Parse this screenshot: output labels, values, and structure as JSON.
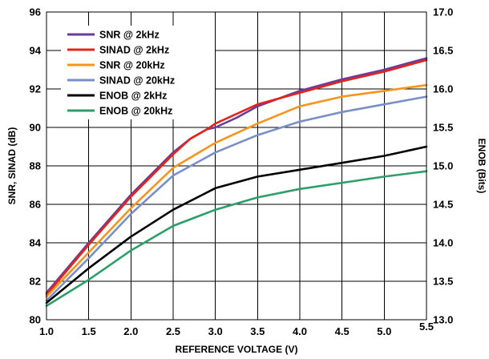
{
  "chart_data": {
    "type": "line",
    "xlabel": "REFERENCE VOLTAGE (V)",
    "ylabel_left": "SNR, SINAD (dB)",
    "ylabel_right": "ENOB (Bits)",
    "xlim": [
      1.0,
      5.5
    ],
    "ylim_left": [
      80,
      96
    ],
    "ylim_right": [
      13.0,
      17.0
    ],
    "xticks": [
      "1.0",
      "1.5",
      "2.0",
      "2.5",
      "3.0",
      "3.5",
      "4.0",
      "4.5",
      "5.0",
      "5.5"
    ],
    "yticks_left": [
      "80",
      "82",
      "84",
      "86",
      "88",
      "90",
      "92",
      "94",
      "96"
    ],
    "yticks_right": [
      "13.0",
      "13.5",
      "14.0",
      "14.5",
      "15.0",
      "15.5",
      "16.0",
      "16.5",
      "17.0"
    ],
    "grid": true,
    "legend_position": "top-left",
    "series": [
      {
        "name": "SNR @ 2kHz",
        "axis": "left",
        "color": "#6a3b9a",
        "x": [
          1.0,
          1.5,
          2.0,
          2.5,
          2.7,
          2.9,
          3.0,
          3.25,
          3.5,
          4.0,
          4.5,
          5.0,
          5.5
        ],
        "y": [
          81.4,
          84.0,
          86.5,
          88.7,
          89.4,
          89.9,
          90.0,
          90.5,
          91.1,
          91.9,
          92.5,
          93.0,
          93.6
        ]
      },
      {
        "name": "SINAD @ 2kHz",
        "axis": "left",
        "color": "#e3241b",
        "x": [
          1.0,
          1.5,
          2.0,
          2.5,
          2.7,
          2.9,
          3.0,
          3.25,
          3.5,
          4.0,
          4.5,
          5.0,
          5.5
        ],
        "y": [
          81.3,
          83.9,
          86.4,
          88.6,
          89.4,
          89.9,
          90.2,
          90.7,
          91.2,
          91.8,
          92.4,
          92.9,
          93.5
        ]
      },
      {
        "name": "SNR @ 20kHz",
        "axis": "left",
        "color": "#f7941d",
        "x": [
          1.0,
          1.5,
          2.0,
          2.5,
          3.0,
          3.5,
          4.0,
          4.5,
          5.0,
          5.5
        ],
        "y": [
          81.2,
          83.5,
          85.8,
          87.9,
          89.2,
          90.2,
          91.1,
          91.6,
          91.9,
          92.2
        ]
      },
      {
        "name": "SINAD @ 20kHz",
        "axis": "left",
        "color": "#7b8fc7",
        "x": [
          1.0,
          1.5,
          2.0,
          2.5,
          3.0,
          3.5,
          4.0,
          4.5,
          5.0,
          5.5
        ],
        "y": [
          81.0,
          83.2,
          85.5,
          87.5,
          88.7,
          89.6,
          90.3,
          90.8,
          91.2,
          91.6
        ]
      },
      {
        "name": "ENOB @ 2kHz",
        "axis": "right",
        "color": "#000000",
        "x": [
          1.0,
          1.5,
          2.0,
          2.5,
          3.0,
          3.5,
          4.0,
          4.5,
          5.0,
          5.5
        ],
        "y": [
          13.22,
          13.67,
          14.08,
          14.43,
          14.71,
          14.86,
          14.95,
          15.04,
          15.13,
          15.25
        ]
      },
      {
        "name": "ENOB @ 20kHz",
        "axis": "right",
        "color": "#2e9e68",
        "x": [
          1.0,
          1.5,
          2.0,
          2.5,
          3.0,
          3.5,
          4.0,
          4.5,
          5.0,
          5.5
        ],
        "y": [
          13.18,
          13.52,
          13.9,
          14.22,
          14.43,
          14.59,
          14.7,
          14.78,
          14.86,
          14.93
        ]
      }
    ]
  }
}
